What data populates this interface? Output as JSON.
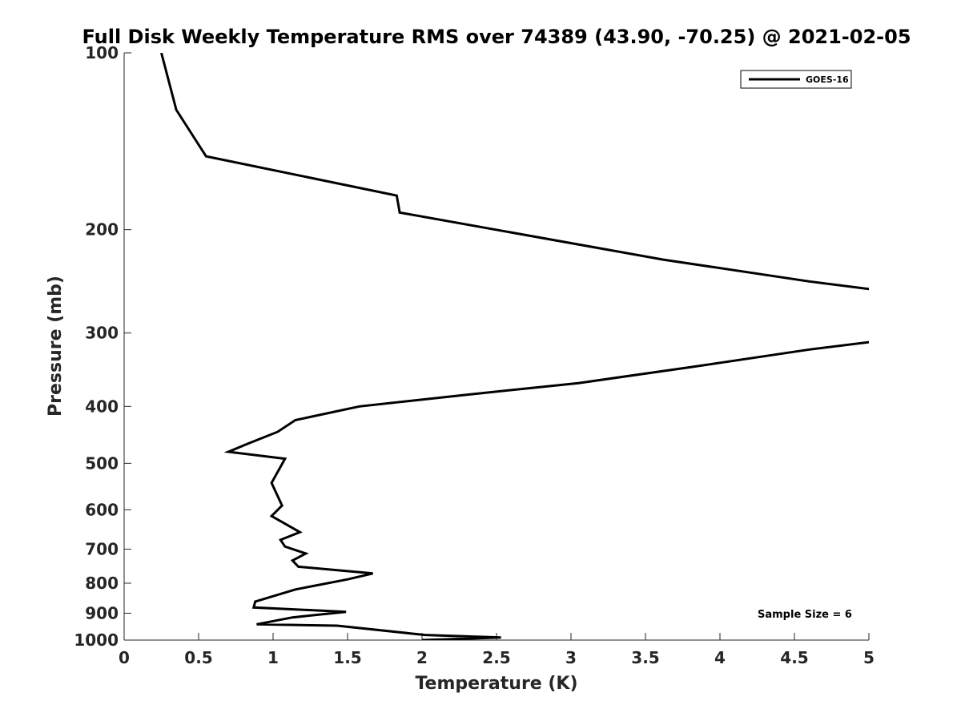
{
  "chart_data": {
    "type": "line",
    "title": "Full Disk Weekly Temperature RMS over 74389 (43.90, -70.25) @ 2021-02-05",
    "xlabel": "Temperature (K)",
    "ylabel": "Pressure (mb)",
    "xlim": [
      0,
      5
    ],
    "ylim": [
      100,
      1000
    ],
    "yscale": "log",
    "yreversed": true,
    "grid": false,
    "legend_position": "top-right",
    "x_ticks": [
      0,
      0.5,
      1,
      1.5,
      2,
      2.5,
      3,
      3.5,
      4,
      4.5,
      5
    ],
    "x_tick_labels": [
      "0",
      "0.5",
      "1",
      "1.5",
      "2",
      "2.5",
      "3",
      "3.5",
      "4",
      "4.5",
      "5"
    ],
    "y_ticks": [
      100,
      200,
      300,
      400,
      500,
      600,
      700,
      800,
      900,
      1000
    ],
    "y_tick_labels": [
      "100",
      "200",
      "300",
      "400",
      "500",
      "600",
      "700",
      "800",
      "900",
      "1000"
    ],
    "series": [
      {
        "name": "GOES-16",
        "color": "#000000",
        "points": [
          [
            0.25,
            100
          ],
          [
            0.35,
            125
          ],
          [
            0.55,
            150
          ],
          [
            1.83,
            175
          ],
          [
            1.85,
            187
          ],
          [
            3.62,
            225
          ],
          [
            4.6,
            245
          ],
          [
            5.5,
            262
          ],
          [
            5.5,
            300
          ],
          [
            4.6,
            320
          ],
          [
            3.8,
            343
          ],
          [
            3.05,
            365
          ],
          [
            2.3,
            382
          ],
          [
            1.58,
            400
          ],
          [
            1.15,
            422
          ],
          [
            1.03,
            442
          ],
          [
            0.83,
            463
          ],
          [
            0.7,
            478
          ],
          [
            1.08,
            491
          ],
          [
            0.99,
            540
          ],
          [
            1.06,
            590
          ],
          [
            0.99,
            615
          ],
          [
            1.18,
            655
          ],
          [
            1.05,
            675
          ],
          [
            1.08,
            693
          ],
          [
            1.22,
            712
          ],
          [
            1.13,
            732
          ],
          [
            1.17,
            750
          ],
          [
            1.67,
            770
          ],
          [
            1.5,
            788
          ],
          [
            1.15,
            820
          ],
          [
            0.88,
            860
          ],
          [
            0.87,
            880
          ],
          [
            1.49,
            895
          ],
          [
            1.13,
            915
          ],
          [
            0.89,
            940
          ],
          [
            1.43,
            945
          ],
          [
            2.02,
            980
          ],
          [
            2.53,
            990
          ],
          [
            2.0,
            1000
          ]
        ]
      }
    ],
    "annotations": [
      "Sample Size = 6"
    ]
  }
}
